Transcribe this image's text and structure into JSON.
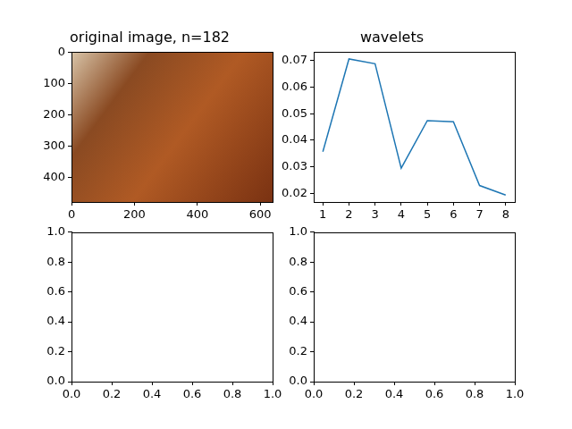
{
  "chart_data": [
    {
      "type": "image",
      "title": "original image, n=182",
      "xlim": [
        -0.5,
        639.5
      ],
      "ylim": [
        479.5,
        -0.5
      ],
      "xticks": [
        0,
        200,
        400,
        600
      ],
      "yticks": [
        0,
        100,
        200,
        300,
        400
      ]
    },
    {
      "type": "line",
      "title": "wavelets",
      "x": [
        1,
        2,
        3,
        4,
        5,
        6,
        7,
        8
      ],
      "values": [
        0.0357,
        0.0706,
        0.0688,
        0.0295,
        0.0474,
        0.047,
        0.023,
        0.0194
      ],
      "color": "#1f77b4",
      "xlim": [
        0.65,
        8.35
      ],
      "ylim": [
        0.0168,
        0.0732
      ],
      "xticks": [
        1,
        2,
        3,
        4,
        5,
        6,
        7,
        8
      ],
      "yticks": [
        0.02,
        0.03,
        0.04,
        0.05,
        0.06,
        0.07
      ]
    },
    {
      "type": "empty",
      "xlim": [
        0,
        1
      ],
      "ylim": [
        0,
        1
      ],
      "xticks": [
        {
          "value": 0,
          "label": "0.0"
        },
        {
          "value": 0.2,
          "label": "0.2"
        },
        {
          "value": 0.4,
          "label": "0.4"
        },
        {
          "value": 0.6,
          "label": "0.6"
        },
        {
          "value": 0.8,
          "label": "0.8"
        },
        {
          "value": 1,
          "label": "1.0"
        }
      ],
      "yticks": [
        {
          "value": 0,
          "label": "0.0"
        },
        {
          "value": 0.2,
          "label": "0.2"
        },
        {
          "value": 0.4,
          "label": "0.4"
        },
        {
          "value": 0.6,
          "label": "0.6"
        },
        {
          "value": 0.8,
          "label": "0.8"
        },
        {
          "value": 1,
          "label": "1.0"
        }
      ]
    },
    {
      "type": "empty",
      "xlim": [
        0,
        1
      ],
      "ylim": [
        0,
        1
      ],
      "xticks": [
        {
          "value": 0,
          "label": "0.0"
        },
        {
          "value": 0.2,
          "label": "0.2"
        },
        {
          "value": 0.4,
          "label": "0.4"
        },
        {
          "value": 0.6,
          "label": "0.6"
        },
        {
          "value": 0.8,
          "label": "0.8"
        },
        {
          "value": 1,
          "label": "1.0"
        }
      ],
      "yticks": [
        {
          "value": 0,
          "label": "0.0"
        },
        {
          "value": 0.2,
          "label": "0.2"
        },
        {
          "value": 0.4,
          "label": "0.4"
        },
        {
          "value": 0.6,
          "label": "0.6"
        },
        {
          "value": 0.8,
          "label": "0.8"
        },
        {
          "value": 1,
          "label": "1.0"
        }
      ]
    }
  ]
}
